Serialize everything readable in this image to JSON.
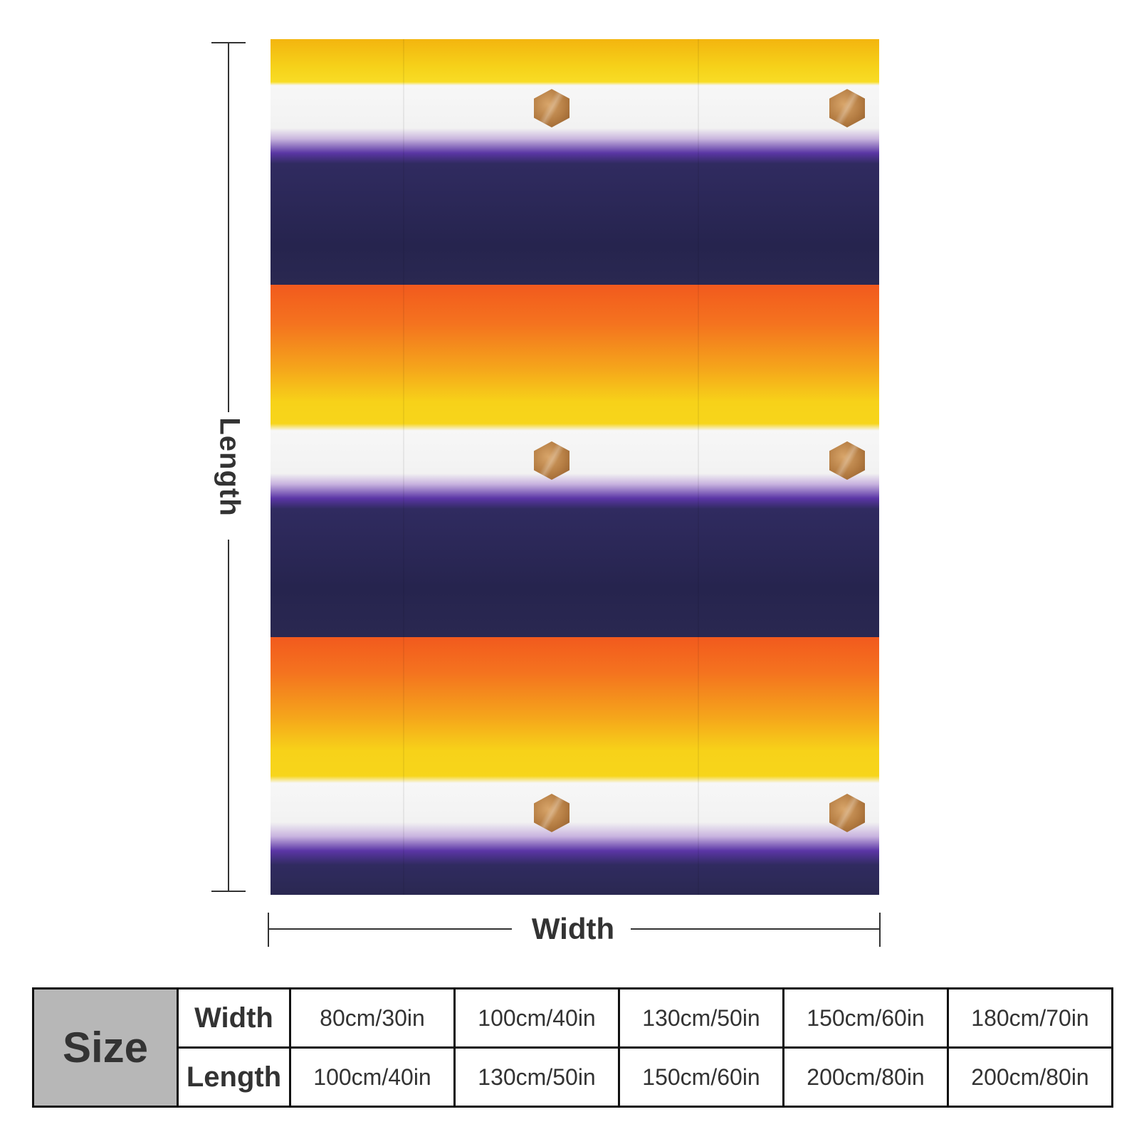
{
  "dimension_labels": {
    "length": "Length",
    "width": "Width"
  },
  "size_table": {
    "header": "Size",
    "rows": [
      {
        "label": "Width",
        "values": [
          "80cm/30in",
          "100cm/40in",
          "130cm/50in",
          "150cm/60in",
          "180cm/70in"
        ]
      },
      {
        "label": "Length",
        "values": [
          "100cm/40in",
          "130cm/50in",
          "150cm/60in",
          "200cm/80in",
          "200cm/80in"
        ]
      }
    ]
  },
  "colors": {
    "yellow": "#f7d51b",
    "orange": "#f25a1e",
    "white": "#f4f4f4",
    "purple": "#5b36a6",
    "navy": "#2a2851",
    "hex_gold": "#b47c42",
    "table_header_gray": "#b7b7b7"
  },
  "icons": {
    "hexagon_motif": "hexagon-gold-icon"
  }
}
